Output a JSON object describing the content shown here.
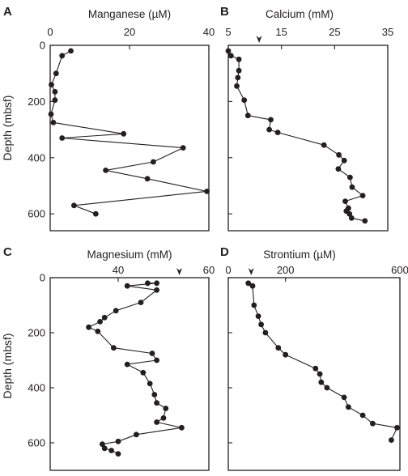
{
  "ylabel": "Depth (mbsf)",
  "chart_data": [
    {
      "type": "line",
      "panel": "A",
      "title": "Manganese (µM)",
      "ylabel": "Depth (mbsf)",
      "xlim": [
        0,
        40
      ],
      "xticks": [
        "0",
        "20",
        "40"
      ],
      "ylim": [
        0,
        660
      ],
      "yticks": [
        "0",
        "200",
        "400",
        "600"
      ],
      "marker_x": null,
      "points": [
        {
          "x": 5.2,
          "y": 20
        },
        {
          "x": 3.0,
          "y": 37
        },
        {
          "x": 1.5,
          "y": 100
        },
        {
          "x": 0.3,
          "y": 140
        },
        {
          "x": 1.2,
          "y": 165
        },
        {
          "x": 1.2,
          "y": 195
        },
        {
          "x": 0.2,
          "y": 245
        },
        {
          "x": 0.8,
          "y": 275
        },
        {
          "x": 18.5,
          "y": 315
        },
        {
          "x": 3.0,
          "y": 330
        },
        {
          "x": 33.5,
          "y": 365
        },
        {
          "x": 26.0,
          "y": 415
        },
        {
          "x": 14.0,
          "y": 445
        },
        {
          "x": 24.5,
          "y": 475
        },
        {
          "x": 39.5,
          "y": 520
        },
        {
          "x": 6.0,
          "y": 570
        },
        {
          "x": 11.5,
          "y": 600
        }
      ]
    },
    {
      "type": "line",
      "panel": "B",
      "title": "Calcium (mM)",
      "xlim": [
        5,
        35
      ],
      "xticks": [
        "5",
        "15",
        "25",
        "35"
      ],
      "ylim": [
        0,
        660
      ],
      "yticks": [
        "0",
        "200",
        "400",
        "600"
      ],
      "marker_x": 10.8,
      "points": [
        {
          "x": 5.0,
          "y": 20
        },
        {
          "x": 5.5,
          "y": 37
        },
        {
          "x": 7.0,
          "y": 50
        },
        {
          "x": 7.0,
          "y": 90
        },
        {
          "x": 6.8,
          "y": 115
        },
        {
          "x": 6.6,
          "y": 145
        },
        {
          "x": 8.0,
          "y": 195
        },
        {
          "x": 8.7,
          "y": 250
        },
        {
          "x": 13.0,
          "y": 265
        },
        {
          "x": 12.7,
          "y": 300
        },
        {
          "x": 14.3,
          "y": 310
        },
        {
          "x": 23.0,
          "y": 355
        },
        {
          "x": 25.8,
          "y": 390
        },
        {
          "x": 26.8,
          "y": 410
        },
        {
          "x": 25.7,
          "y": 440
        },
        {
          "x": 27.9,
          "y": 470
        },
        {
          "x": 28.3,
          "y": 505
        },
        {
          "x": 30.3,
          "y": 535
        },
        {
          "x": 27.0,
          "y": 555
        },
        {
          "x": 27.6,
          "y": 580
        },
        {
          "x": 27.2,
          "y": 590
        },
        {
          "x": 27.8,
          "y": 600
        },
        {
          "x": 28.2,
          "y": 615
        },
        {
          "x": 30.7,
          "y": 625
        }
      ]
    },
    {
      "type": "line",
      "panel": "C",
      "title": "Magnesium (mM)",
      "ylabel": "Depth (mbsf)",
      "xlim": [
        25,
        60
      ],
      "xticks": [
        "40",
        "60"
      ],
      "ylim": [
        0,
        700
      ],
      "yticks": [
        "0",
        "200",
        "400",
        "600"
      ],
      "marker_x": 53.5,
      "points": [
        {
          "x": 46.5,
          "y": 20
        },
        {
          "x": 48.5,
          "y": 20
        },
        {
          "x": 42.0,
          "y": 30
        },
        {
          "x": 48.5,
          "y": 45
        },
        {
          "x": 45.0,
          "y": 90
        },
        {
          "x": 39.5,
          "y": 120
        },
        {
          "x": 37.0,
          "y": 145
        },
        {
          "x": 36.0,
          "y": 160
        },
        {
          "x": 33.5,
          "y": 180
        },
        {
          "x": 35.5,
          "y": 195
        },
        {
          "x": 39.0,
          "y": 255
        },
        {
          "x": 47.5,
          "y": 275
        },
        {
          "x": 48.5,
          "y": 300
        },
        {
          "x": 42.0,
          "y": 315
        },
        {
          "x": 45.5,
          "y": 345
        },
        {
          "x": 47.0,
          "y": 385
        },
        {
          "x": 48.0,
          "y": 425
        },
        {
          "x": 48.5,
          "y": 455
        },
        {
          "x": 50.5,
          "y": 475
        },
        {
          "x": 50.0,
          "y": 510
        },
        {
          "x": 48.5,
          "y": 525
        },
        {
          "x": 54.0,
          "y": 545
        },
        {
          "x": 44.0,
          "y": 570
        },
        {
          "x": 40.0,
          "y": 595
        },
        {
          "x": 36.5,
          "y": 605
        },
        {
          "x": 37.0,
          "y": 620
        },
        {
          "x": 38.5,
          "y": 628
        },
        {
          "x": 40.0,
          "y": 640
        }
      ]
    },
    {
      "type": "line",
      "panel": "D",
      "title": "Strontium (µM)",
      "xlim": [
        0,
        600
      ],
      "xticks": [
        "0",
        "200",
        "600"
      ],
      "ylim": [
        0,
        700
      ],
      "yticks": [
        "0",
        "200",
        "400",
        "600"
      ],
      "marker_x": 80,
      "points": [
        {
          "x": 70,
          "y": 20
        },
        {
          "x": 85,
          "y": 30
        },
        {
          "x": 90,
          "y": 100
        },
        {
          "x": 105,
          "y": 140
        },
        {
          "x": 115,
          "y": 170
        },
        {
          "x": 130,
          "y": 200
        },
        {
          "x": 175,
          "y": 255
        },
        {
          "x": 200,
          "y": 280
        },
        {
          "x": 305,
          "y": 330
        },
        {
          "x": 320,
          "y": 350
        },
        {
          "x": 325,
          "y": 380
        },
        {
          "x": 345,
          "y": 400
        },
        {
          "x": 405,
          "y": 435
        },
        {
          "x": 420,
          "y": 470
        },
        {
          "x": 470,
          "y": 500
        },
        {
          "x": 505,
          "y": 530
        },
        {
          "x": 590,
          "y": 545
        },
        {
          "x": 570,
          "y": 590
        }
      ]
    }
  ]
}
